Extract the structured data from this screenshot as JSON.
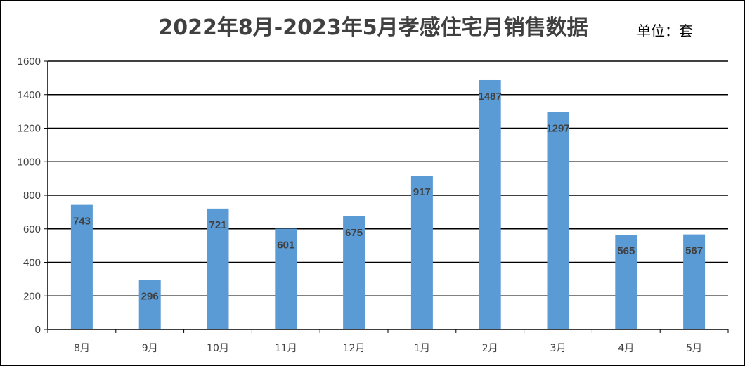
{
  "chart_data": {
    "type": "bar",
    "title": "2022年8月-2023年5月孝感住宅月销售数据",
    "unit_label": "单位：套",
    "xlabel": "",
    "ylabel": "",
    "categories": [
      "8月",
      "9月",
      "10月",
      "11月",
      "12月",
      "1月",
      "2月",
      "3月",
      "4月",
      "5月"
    ],
    "values": [
      743,
      296,
      721,
      601,
      675,
      917,
      1487,
      1297,
      565,
      567
    ],
    "data_labels": [
      "743",
      "296",
      "721",
      "601",
      "675",
      "917",
      "1487",
      "1297",
      "565",
      "567"
    ],
    "y_ticks": [
      "0",
      "200",
      "400",
      "600",
      "800",
      "1000",
      "1200",
      "1400",
      "1600"
    ],
    "ylim": [
      0,
      1600
    ],
    "grid": true,
    "legend": "none",
    "bar_color": "#5B9BD5"
  }
}
